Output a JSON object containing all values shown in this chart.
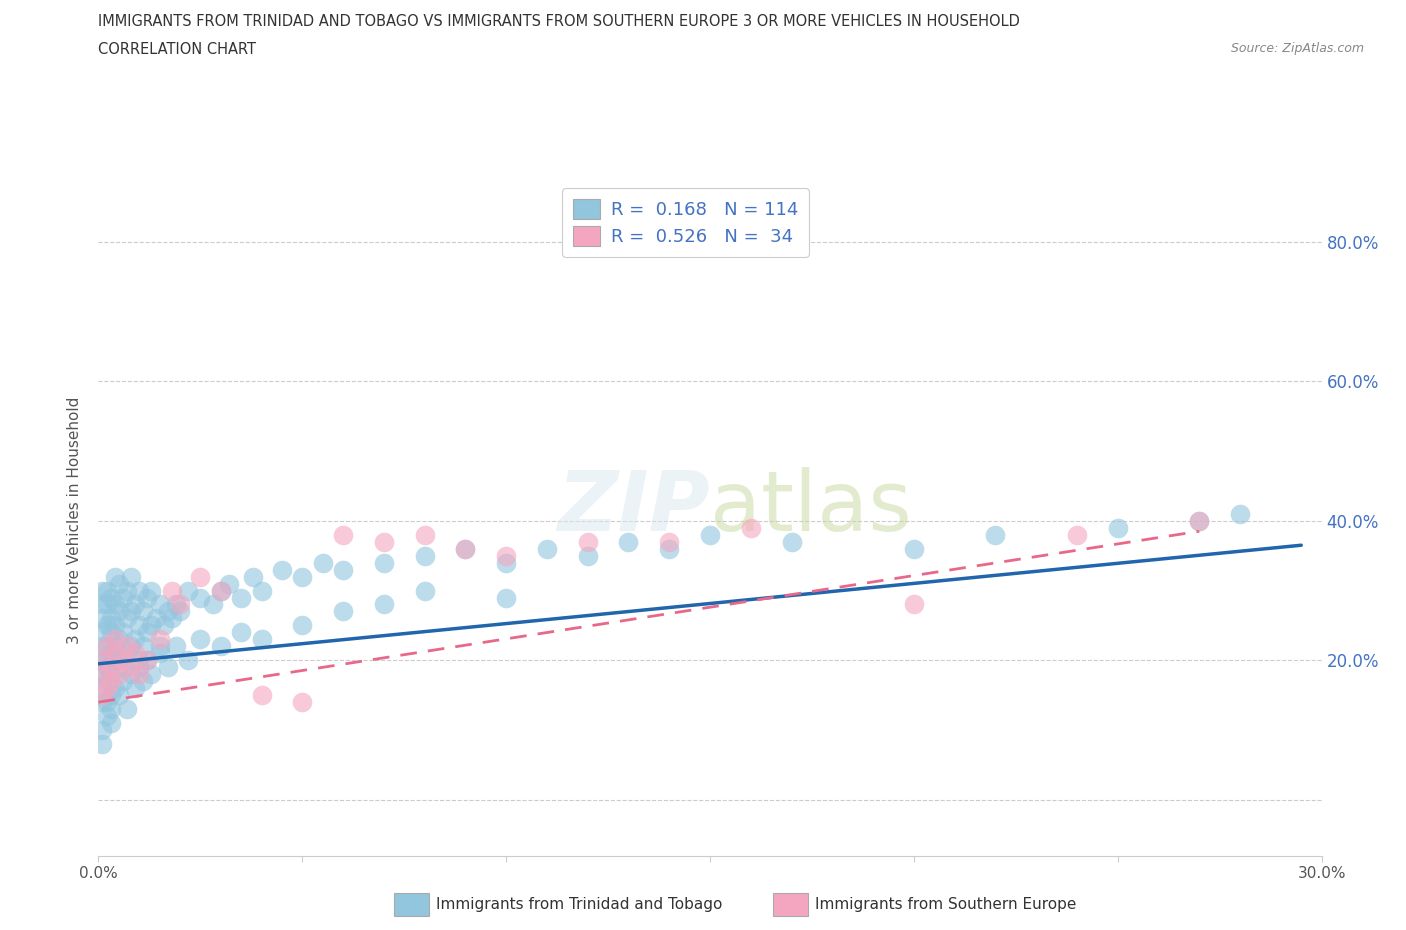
{
  "title_line1": "IMMIGRANTS FROM TRINIDAD AND TOBAGO VS IMMIGRANTS FROM SOUTHERN EUROPE 3 OR MORE VEHICLES IN HOUSEHOLD",
  "title_line2": "CORRELATION CHART",
  "source_text": "Source: ZipAtlas.com",
  "xlabel_blue": "Immigrants from Trinidad and Tobago",
  "xlabel_pink": "Immigrants from Southern Europe",
  "ylabel": "3 or more Vehicles in Household",
  "xlim": [
    0.0,
    0.3
  ],
  "ylim": [
    -0.08,
    0.88
  ],
  "xticks": [
    0.0,
    0.05,
    0.1,
    0.15,
    0.2,
    0.25,
    0.3
  ],
  "xticklabels": [
    "0.0%",
    "",
    "",
    "",
    "",
    "",
    "30.0%"
  ],
  "ytick_positions": [
    0.0,
    0.2,
    0.4,
    0.6,
    0.8
  ],
  "yticklabels_right": [
    "",
    "20.0%",
    "40.0%",
    "60.0%",
    "80.0%"
  ],
  "R_blue": 0.168,
  "N_blue": 114,
  "R_pink": 0.526,
  "N_pink": 34,
  "blue_color": "#92c5de",
  "pink_color": "#f4a6c0",
  "trend_blue_color": "#2166ac",
  "trend_pink_color": "#e8688a",
  "watermark_text": "ZIPatlas",
  "grid_color": "#cccccc",
  "blue_x": [
    0.001,
    0.001,
    0.001,
    0.001,
    0.001,
    0.001,
    0.001,
    0.001,
    0.001,
    0.002,
    0.002,
    0.002,
    0.002,
    0.002,
    0.002,
    0.002,
    0.003,
    0.003,
    0.003,
    0.003,
    0.003,
    0.003,
    0.004,
    0.004,
    0.004,
    0.004,
    0.005,
    0.005,
    0.005,
    0.005,
    0.006,
    0.006,
    0.006,
    0.007,
    0.007,
    0.007,
    0.008,
    0.008,
    0.008,
    0.009,
    0.009,
    0.01,
    0.01,
    0.01,
    0.011,
    0.011,
    0.012,
    0.012,
    0.013,
    0.013,
    0.014,
    0.015,
    0.015,
    0.016,
    0.017,
    0.018,
    0.019,
    0.02,
    0.022,
    0.025,
    0.028,
    0.03,
    0.032,
    0.035,
    0.038,
    0.04,
    0.045,
    0.05,
    0.055,
    0.06,
    0.07,
    0.08,
    0.09,
    0.1,
    0.11,
    0.12,
    0.13,
    0.14,
    0.15,
    0.17,
    0.2,
    0.22,
    0.25,
    0.27,
    0.28,
    0.001,
    0.001,
    0.002,
    0.002,
    0.003,
    0.003,
    0.004,
    0.005,
    0.006,
    0.007,
    0.008,
    0.009,
    0.01,
    0.011,
    0.012,
    0.013,
    0.015,
    0.017,
    0.019,
    0.022,
    0.025,
    0.03,
    0.035,
    0.04,
    0.05,
    0.06,
    0.07,
    0.08,
    0.1
  ],
  "blue_y": [
    0.18,
    0.2,
    0.22,
    0.24,
    0.26,
    0.28,
    0.3,
    0.14,
    0.16,
    0.2,
    0.22,
    0.25,
    0.28,
    0.3,
    0.17,
    0.19,
    0.21,
    0.24,
    0.26,
    0.29,
    0.18,
    0.15,
    0.22,
    0.25,
    0.28,
    0.32,
    0.2,
    0.23,
    0.27,
    0.31,
    0.19,
    0.24,
    0.29,
    0.21,
    0.26,
    0.3,
    0.22,
    0.27,
    0.32,
    0.23,
    0.28,
    0.2,
    0.25,
    0.3,
    0.22,
    0.27,
    0.24,
    0.29,
    0.25,
    0.3,
    0.26,
    0.22,
    0.28,
    0.25,
    0.27,
    0.26,
    0.28,
    0.27,
    0.3,
    0.29,
    0.28,
    0.3,
    0.31,
    0.29,
    0.32,
    0.3,
    0.33,
    0.32,
    0.34,
    0.33,
    0.34,
    0.35,
    0.36,
    0.34,
    0.36,
    0.35,
    0.37,
    0.36,
    0.38,
    0.37,
    0.36,
    0.38,
    0.39,
    0.4,
    0.41,
    0.08,
    0.1,
    0.12,
    0.14,
    0.13,
    0.11,
    0.16,
    0.15,
    0.17,
    0.13,
    0.18,
    0.16,
    0.19,
    0.17,
    0.2,
    0.18,
    0.21,
    0.19,
    0.22,
    0.2,
    0.23,
    0.22,
    0.24,
    0.23,
    0.25,
    0.27,
    0.28,
    0.3,
    0.29
  ],
  "pink_x": [
    0.001,
    0.001,
    0.001,
    0.002,
    0.002,
    0.003,
    0.003,
    0.004,
    0.004,
    0.005,
    0.006,
    0.007,
    0.008,
    0.009,
    0.01,
    0.012,
    0.015,
    0.018,
    0.02,
    0.025,
    0.03,
    0.04,
    0.05,
    0.06,
    0.07,
    0.08,
    0.09,
    0.1,
    0.12,
    0.14,
    0.16,
    0.2,
    0.24,
    0.27
  ],
  "pink_y": [
    0.15,
    0.18,
    0.2,
    0.16,
    0.22,
    0.17,
    0.19,
    0.21,
    0.23,
    0.18,
    0.2,
    0.22,
    0.19,
    0.21,
    0.18,
    0.2,
    0.23,
    0.3,
    0.28,
    0.32,
    0.3,
    0.15,
    0.14,
    0.38,
    0.37,
    0.38,
    0.36,
    0.35,
    0.37,
    0.37,
    0.39,
    0.28,
    0.38,
    0.4
  ],
  "blue_trend_x": [
    0.0,
    0.295
  ],
  "blue_trend_y": [
    0.195,
    0.365
  ],
  "pink_trend_x": [
    0.0,
    0.27
  ],
  "pink_trend_y": [
    0.14,
    0.385
  ]
}
